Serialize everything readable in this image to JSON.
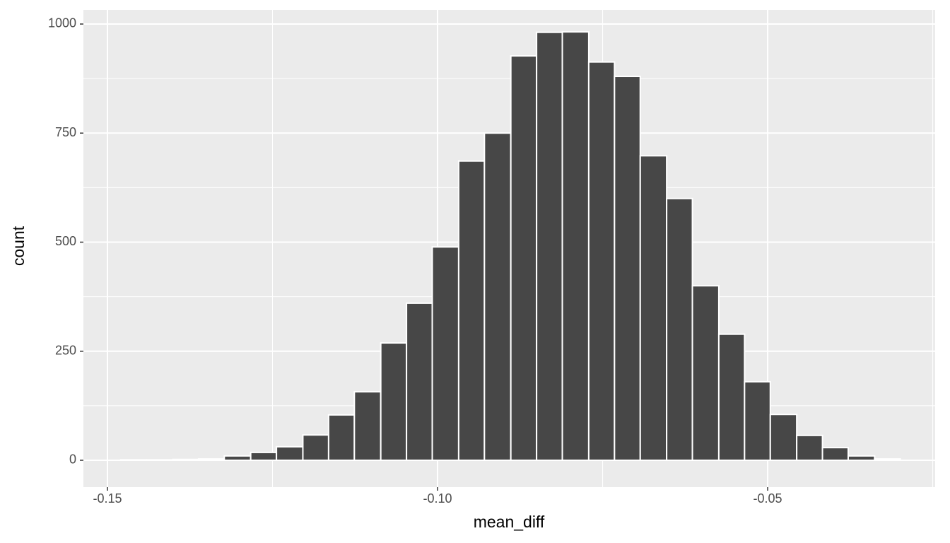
{
  "chart_data": {
    "type": "histogram",
    "x_label": "mean_diff",
    "y_label": "count",
    "bins": [
      -0.148,
      -0.1441,
      -0.1401,
      -0.1362,
      -0.1323,
      -0.1283,
      -0.1244,
      -0.1204,
      -0.1165,
      -0.1126,
      -0.1086,
      -0.1047,
      -0.1008,
      -0.0968,
      -0.0929,
      -0.0889,
      -0.085,
      -0.0811,
      -0.0771,
      -0.0732,
      -0.0693,
      -0.0653,
      -0.0614,
      -0.0574,
      -0.0535,
      -0.0496,
      -0.0456,
      -0.0417,
      -0.0378,
      -0.0338,
      -0.0299
    ],
    "values": [
      1,
      1,
      2,
      3,
      10,
      18,
      31,
      58,
      104,
      157,
      269,
      360,
      489,
      686,
      750,
      927,
      981,
      982,
      913,
      880,
      698,
      600,
      400,
      289,
      180,
      105,
      57,
      29,
      10,
      3
    ],
    "color": "#474747",
    "edge_color": "#ffffff",
    "background": "#ebebeb",
    "grid": true,
    "xlim": [
      -0.15364,
      -0.02463
    ],
    "ylim": [
      -61.6,
      1032.4
    ],
    "xticks": [
      {
        "value": -0.15,
        "label": "-0.15"
      },
      {
        "value": -0.1,
        "label": "-0.10"
      },
      {
        "value": -0.05,
        "label": "-0.05"
      }
    ],
    "minor_xticks": [
      -0.125,
      -0.075,
      -0.025
    ],
    "yticks": [
      0,
      250,
      500,
      750,
      1000
    ],
    "minor_yticks": [
      125,
      375,
      625,
      875
    ]
  }
}
